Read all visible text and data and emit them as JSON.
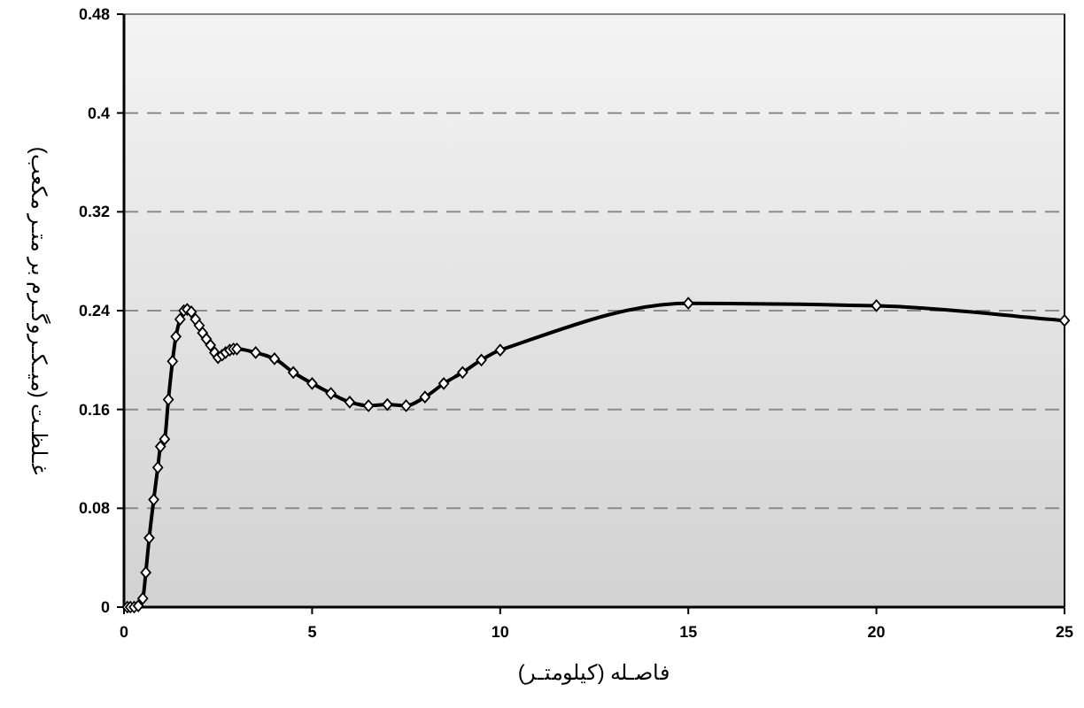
{
  "chart_data": {
    "type": "line",
    "xlabel": "فاصـله (کیلومتـر)",
    "ylabel": "غـلظـت (میـکـروگـرم بر متـر مکعب)",
    "xlim": [
      0,
      25
    ],
    "xticks": [
      0,
      5,
      10,
      15,
      20,
      25
    ],
    "ylim": [
      0,
      0.48
    ],
    "yticks": [
      0,
      0.08,
      0.16,
      0.24,
      0.32,
      0.4,
      0.48
    ],
    "grid": "y",
    "marker": "diamond",
    "line_style": "solid",
    "series": [
      {
        "color": "#000000",
        "x": [
          0.09,
          0.17,
          0.27,
          0.38,
          0.5,
          0.58,
          0.67,
          0.79,
          0.9,
          0.97,
          1.08,
          1.18,
          1.29,
          1.38,
          1.49,
          1.59,
          1.68,
          1.79,
          1.9,
          2.0,
          2.09,
          2.19,
          2.3,
          2.41,
          2.5,
          2.61,
          2.7,
          2.81,
          2.91,
          3.0,
          3.5,
          4.0,
          4.5,
          5.0,
          5.5,
          6.0,
          6.5,
          7.0,
          7.5,
          8.0,
          8.5,
          9.0,
          9.5,
          10.0,
          15,
          20,
          25
        ],
        "values": [
          0,
          0,
          0,
          0.001,
          0.007,
          0.028,
          0.056,
          0.087,
          0.113,
          0.13,
          0.136,
          0.168,
          0.199,
          0.219,
          0.233,
          0.24,
          0.241,
          0.239,
          0.233,
          0.228,
          0.222,
          0.217,
          0.212,
          0.206,
          0.202,
          0.204,
          0.206,
          0.208,
          0.209,
          0.209,
          0.206,
          0.201,
          0.19,
          0.181,
          0.173,
          0.166,
          0.163,
          0.164,
          0.163,
          0.17,
          0.181,
          0.19,
          0.2,
          0.208,
          0.246,
          0.244,
          0.232
        ]
      }
    ]
  }
}
